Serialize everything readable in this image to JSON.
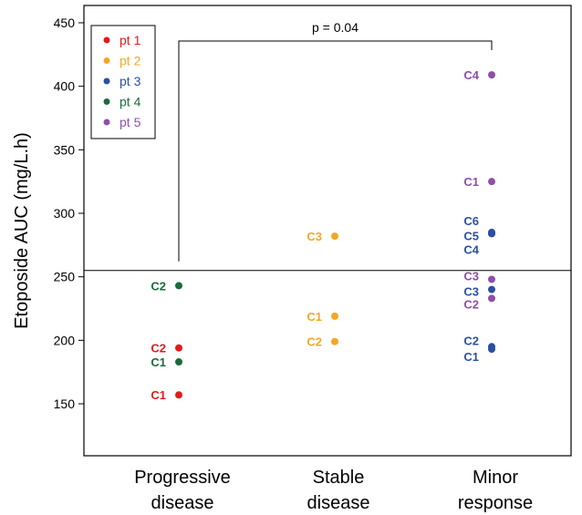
{
  "chart_data": {
    "type": "scatter",
    "ylabel": "Etoposide AUC (mg/L.h)",
    "xlabel": "",
    "ylim": [
      100,
      460
    ],
    "yticks": [
      150,
      200,
      250,
      300,
      350,
      400,
      450
    ],
    "categories": [
      "Progressive disease",
      "Stable disease",
      "Minor response"
    ],
    "category_lines": [
      [
        "Progressive",
        "disease"
      ],
      [
        "Stable",
        "disease"
      ],
      [
        "Minor",
        "response"
      ]
    ],
    "reference_line": 255,
    "annotation": {
      "text": "p = 0.04",
      "from": "Progressive disease",
      "to": "Minor response"
    },
    "legend_position": "top-left",
    "series": [
      {
        "name": "pt 1",
        "color": "#e31a1c",
        "points": [
          {
            "category": "Progressive disease",
            "y": 194,
            "label": "C2"
          },
          {
            "category": "Progressive disease",
            "y": 157,
            "label": "C1"
          }
        ]
      },
      {
        "name": "pt 2",
        "color": "#f5a623",
        "points": [
          {
            "category": "Stable disease",
            "y": 282,
            "label": "C3"
          },
          {
            "category": "Stable disease",
            "y": 219,
            "label": "C1"
          },
          {
            "category": "Stable disease",
            "y": 199,
            "label": "C2"
          }
        ]
      },
      {
        "name": "pt 3",
        "color": "#2b4fa3",
        "points": [
          {
            "category": "Minor response",
            "y": 285,
            "label": "C6"
          },
          {
            "category": "Minor response",
            "y": 284,
            "label": "C5"
          },
          {
            "category": "Minor response",
            "y": 284,
            "label": "C4"
          },
          {
            "category": "Minor response",
            "y": 240,
            "label": "C3"
          },
          {
            "category": "Minor response",
            "y": 195,
            "label": "C2"
          },
          {
            "category": "Minor response",
            "y": 193,
            "label": "C1"
          }
        ]
      },
      {
        "name": "pt 4",
        "color": "#1a6b3a",
        "points": [
          {
            "category": "Progressive disease",
            "y": 243,
            "label": "C2"
          },
          {
            "category": "Progressive disease",
            "y": 183,
            "label": "C1"
          }
        ]
      },
      {
        "name": "pt 5",
        "color": "#8e4fa8",
        "points": [
          {
            "category": "Minor response",
            "y": 409,
            "label": "C4"
          },
          {
            "category": "Minor response",
            "y": 325,
            "label": "C1"
          },
          {
            "category": "Minor response",
            "y": 248,
            "label": "C3"
          },
          {
            "category": "Minor response",
            "y": 233,
            "label": "C2"
          }
        ]
      }
    ]
  }
}
